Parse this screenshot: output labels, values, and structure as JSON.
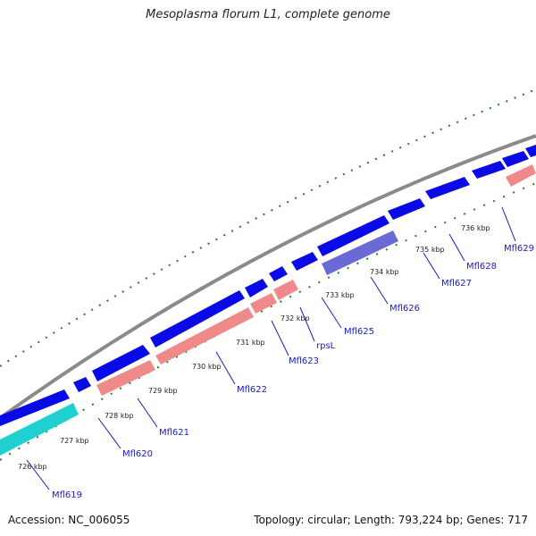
{
  "title": "Mesoplasma florum L1, complete genome",
  "footer": {
    "accession": "Accession: NC_006055",
    "summary": "Topology: circular; Length: 793,224 bp; Genes: 717"
  },
  "colors": {
    "backbone": "#8a8a8a",
    "forward_gene": "#0a0ae6",
    "reverse_gene": "#f08a8a",
    "rna_gene": "#20d0d0",
    "other_gene": "#6a6ad6",
    "tick": "#2a7a2a",
    "label": "#1a1acc"
  },
  "ticks": [
    "726 kbp",
    "727 kbp",
    "728 kbp",
    "729 kbp",
    "730 kbp",
    "731 kbp",
    "732 kbp",
    "733 kbp",
    "734 kbp",
    "735 kbp",
    "736 kbp"
  ],
  "genes": [
    "Mfl619",
    "Mfl620",
    "Mfl621",
    "Mfl622",
    "Mfl623",
    "rpsL",
    "Mfl625",
    "Mfl626",
    "Mfl627",
    "Mfl628",
    "Mfl629"
  ]
}
